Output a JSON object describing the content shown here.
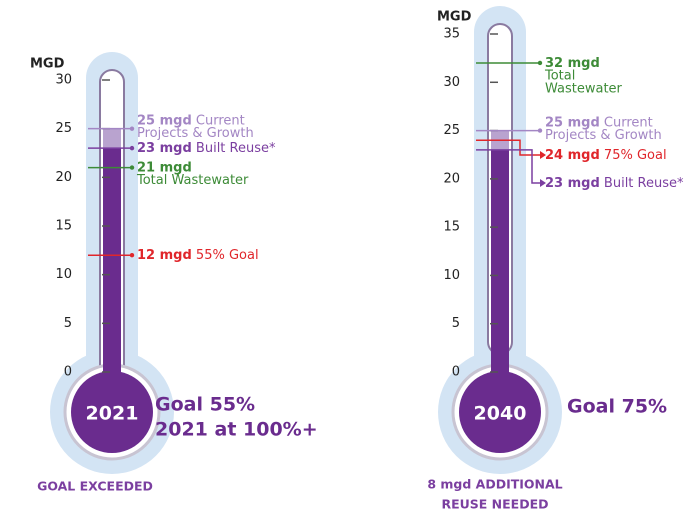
{
  "chart_data": [
    {
      "type": "thermometer",
      "ylabel": "MGD",
      "ylim": [
        0,
        30
      ],
      "yticks": [
        0,
        5,
        10,
        15,
        20,
        25,
        30
      ],
      "year": "2021",
      "goal_lines": [
        "Goal 55%",
        "2021 at 100%+"
      ],
      "footer_lines": [
        "GOAL EXCEEDED"
      ],
      "markers": [
        {
          "value": 25,
          "label": "25 mgd",
          "text": [
            "Current",
            "Projects & Growth"
          ],
          "color": "#a386c4",
          "fill": "#b9a3cf"
        },
        {
          "value": 23,
          "label": "23 mgd",
          "text": [
            "Built Reuse*"
          ],
          "color": "#7b3fa0",
          "fill": "#6a2c8e"
        },
        {
          "value": 21,
          "label": "21 mgd",
          "text": [
            "Total Wastewater"
          ],
          "color": "#3d8b37"
        },
        {
          "value": 12,
          "label": "12 mgd",
          "text": [
            "55% Goal"
          ],
          "color": "#e0262b"
        }
      ]
    },
    {
      "type": "thermometer",
      "ylabel": "MGD",
      "ylim": [
        0,
        35
      ],
      "yticks": [
        0,
        5,
        10,
        15,
        20,
        25,
        30,
        35
      ],
      "year": "2040",
      "goal_lines": [
        "Goal 75%"
      ],
      "footer_lines": [
        "8 mgd ADDITIONAL",
        "REUSE NEEDED"
      ],
      "markers": [
        {
          "value": 32,
          "label": "32 mgd",
          "text": [
            "Total",
            "Wastewater"
          ],
          "color": "#3d8b37"
        },
        {
          "value": 25,
          "label": "25 mgd",
          "text": [
            "Current",
            "Projects & Growth"
          ],
          "color": "#a386c4",
          "fill": "#b9a3cf"
        },
        {
          "value": 24,
          "label": "24 mgd",
          "text": [
            "75% Goal"
          ],
          "color": "#e0262b"
        },
        {
          "value": 23,
          "label": "23 mgd",
          "text": [
            "Built Reuse*"
          ],
          "color": "#7b3fa0",
          "fill": "#6a2c8e"
        }
      ]
    }
  ]
}
